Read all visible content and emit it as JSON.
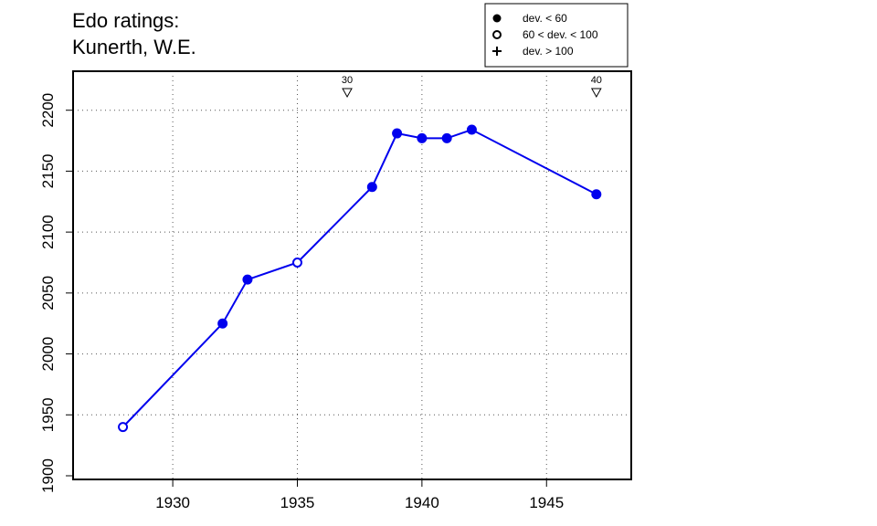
{
  "chart_data": {
    "type": "line",
    "title_line1": "Edo ratings:",
    "title_line2": "Kunerth, W.E.",
    "xlabel": "",
    "ylabel": "",
    "xlim": [
      1926,
      1948.4
    ],
    "ylim": [
      1897,
      2232
    ],
    "x_ticks": [
      1930,
      1935,
      1940,
      1945
    ],
    "y_ticks": [
      1900,
      1950,
      2000,
      2050,
      2100,
      2150,
      2200
    ],
    "grid": "dotted",
    "line_color": "#0000ee",
    "series": [
      {
        "points": [
          {
            "x": 1928,
            "y": 1940,
            "dev": "mid"
          },
          {
            "x": 1932,
            "y": 2025,
            "dev": "low"
          },
          {
            "x": 1933,
            "y": 2061,
            "dev": "low"
          },
          {
            "x": 1935,
            "y": 2075,
            "dev": "mid"
          },
          {
            "x": 1938,
            "y": 2137,
            "dev": "low"
          },
          {
            "x": 1939,
            "y": 2181,
            "dev": "low"
          },
          {
            "x": 1940,
            "y": 2177,
            "dev": "low"
          },
          {
            "x": 1941,
            "y": 2177,
            "dev": "low"
          },
          {
            "x": 1942,
            "y": 2184,
            "dev": "low"
          },
          {
            "x": 1947,
            "y": 2131,
            "dev": "low"
          }
        ]
      }
    ],
    "markers": [
      {
        "x": 1937,
        "label": "30"
      },
      {
        "x": 1947,
        "label": "40"
      }
    ],
    "legend": {
      "placement": "top-right",
      "items": [
        {
          "symbol": "filled-circle",
          "label": "dev. < 60"
        },
        {
          "symbol": "open-circle",
          "label": "60 < dev. < 100"
        },
        {
          "symbol": "plus",
          "label": "dev. > 100"
        }
      ]
    }
  }
}
